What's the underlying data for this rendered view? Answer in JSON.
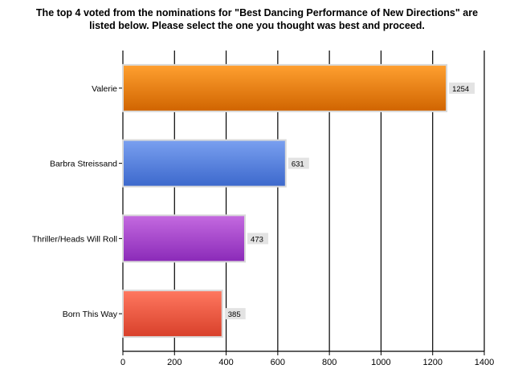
{
  "title_lines": [
    "The top 4 voted from the nominations for \"Best Dancing Performance of New Directions\" are",
    "listed below. Please select the one you thought was best and proceed."
  ],
  "chart_data": {
    "type": "bar",
    "orientation": "horizontal",
    "title": "The top 4 voted from the nominations for \"Best Dancing Performance of New Directions\" are listed below. Please select the one you thought was best and proceed.",
    "categories": [
      "Valerie",
      "Barbra Streissand",
      "Thriller/Heads Will Roll",
      "Born This Way"
    ],
    "values": [
      1254,
      631,
      473,
      385
    ],
    "xlim": [
      0,
      1400
    ],
    "x_ticks": [
      0,
      200,
      400,
      600,
      800,
      1000,
      1200,
      1400
    ],
    "grid": "vertical",
    "data_labels": true,
    "colors": [
      {
        "light": "#ffa030",
        "dark": "#d06400",
        "stroke": "#b85600"
      },
      {
        "light": "#7aa0f0",
        "dark": "#3c68cc",
        "stroke": "#3056b0"
      },
      {
        "light": "#c46ae0",
        "dark": "#8a2ab8",
        "stroke": "#7a22a4"
      },
      {
        "light": "#ff7860",
        "dark": "#d8402a",
        "stroke": "#bf3522"
      }
    ]
  }
}
